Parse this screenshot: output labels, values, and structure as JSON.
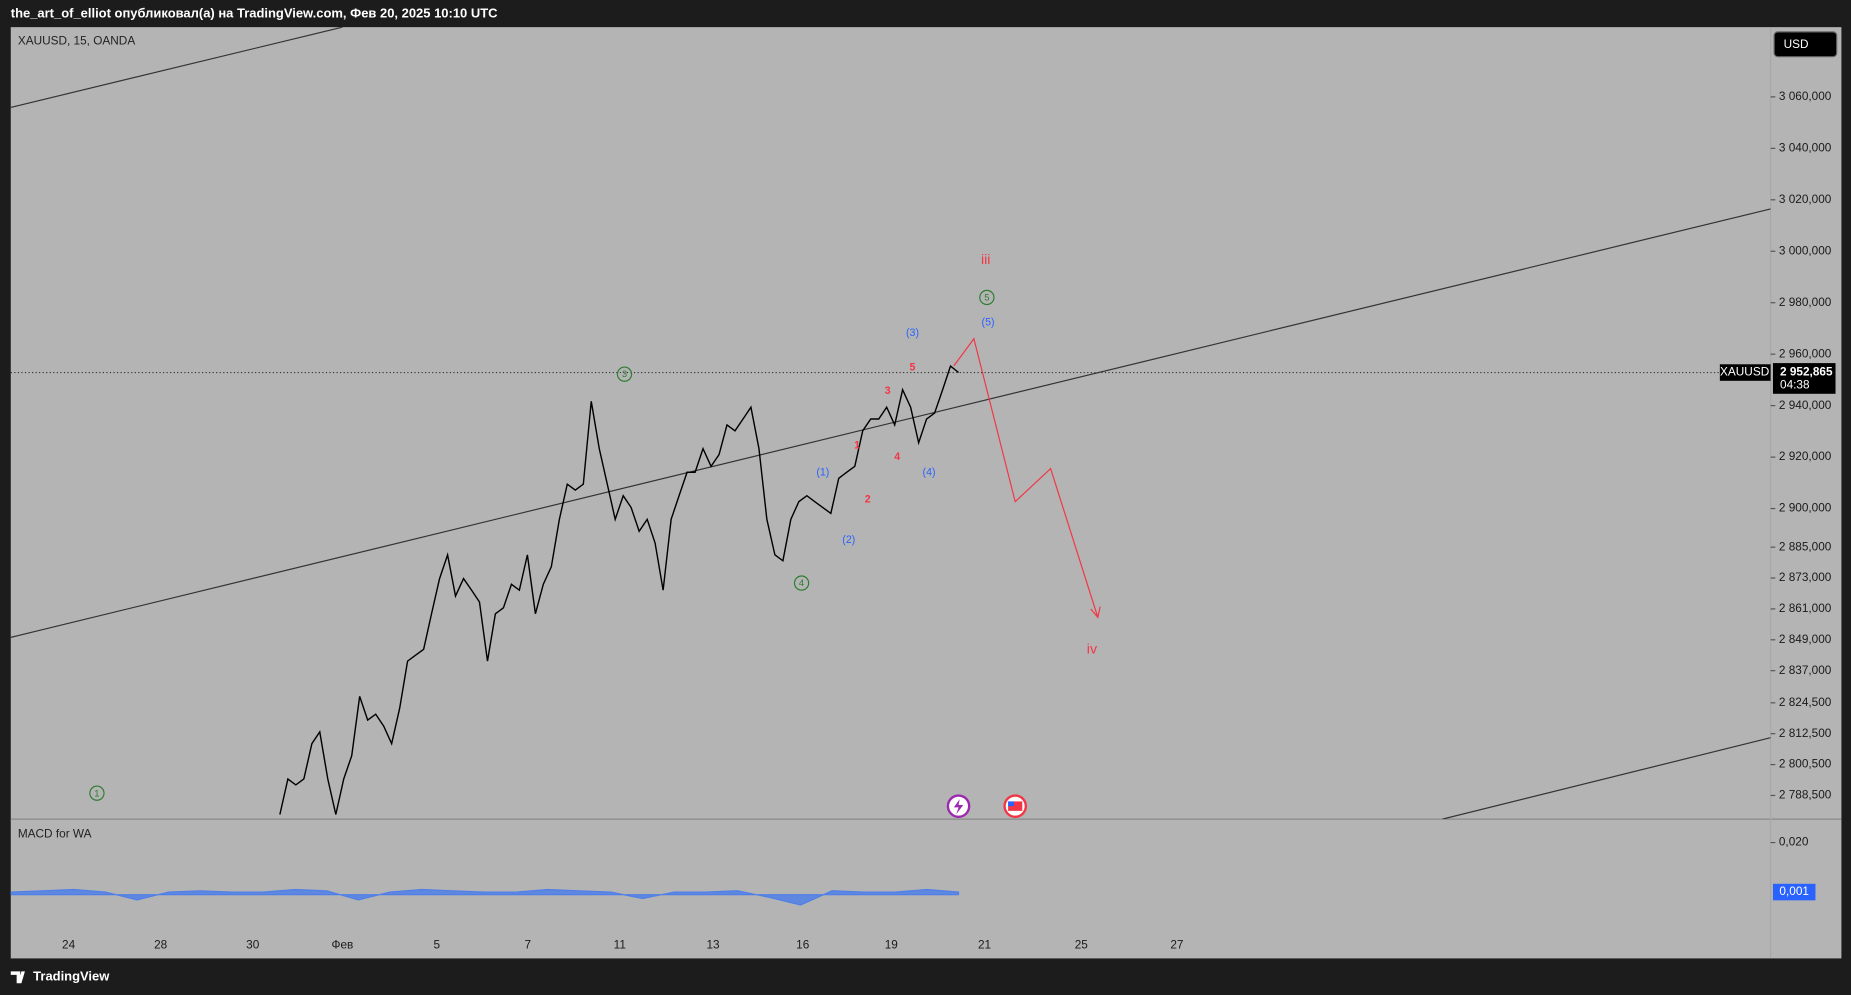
{
  "header": {
    "text": "the_art_of_elliot опубликовал(а) на TradingView.com, Фев 20, 2025 10:10 UTC"
  },
  "footer": {
    "brand": "TradingView"
  },
  "chart_data": [
    {
      "type": "line",
      "title": "XAUUSD, 15, OANDA",
      "currency": "USD",
      "series": [
        {
          "name": "XAUUSD",
          "color": "#000000",
          "values": [
            2781.1,
            2794.9,
            2792.6,
            2794.9,
            2808.6,
            2813.2,
            2794.9,
            2781.1,
            2794.9,
            2804.0,
            2827.0,
            2817.8,
            2820.1,
            2815.5,
            2808.6,
            2822.4,
            2840.7,
            2843.0,
            2845.3,
            2859.1,
            2872.8,
            2882.0,
            2866.0,
            2872.8,
            2868.3,
            2863.7,
            2840.7,
            2859.1,
            2861.4,
            2870.6,
            2868.3,
            2882.0,
            2859.1,
            2870.6,
            2877.4,
            2895.8,
            2909.5,
            2907.2,
            2909.5,
            2941.7,
            2923.3,
            2909.5,
            2895.8,
            2905.0,
            2900.4,
            2891.2,
            2895.8,
            2886.6,
            2868.3,
            2895.8,
            2905.0,
            2914.1,
            2914.1,
            2923.3,
            2916.4,
            2921.0,
            2932.5,
            2930.2,
            2934.8,
            2939.4,
            2923.3,
            2895.8,
            2882.0,
            2879.7,
            2895.8,
            2902.7,
            2905.0,
            2902.7,
            2900.4,
            2898.1,
            2911.8,
            2914.1,
            2916.4,
            2930.2,
            2934.8,
            2934.8,
            2939.4,
            2932.5,
            2946.2,
            2939.4,
            2925.6,
            2934.8,
            2937.1,
            2946.2,
            2955.4,
            2952.9
          ]
        }
      ],
      "last_price": {
        "value": 2952.865,
        "label": "2 952,865"
      },
      "countdown": "04:38",
      "ylim": [
        2779.3,
        3087.1
      ],
      "yticks": [
        {
          "value": 3060,
          "label": "3 060,000"
        },
        {
          "value": 3040,
          "label": "3 040,000"
        },
        {
          "value": 3020,
          "label": "3 020,000"
        },
        {
          "value": 3000,
          "label": "3 000,000"
        },
        {
          "value": 2980,
          "label": "2 980,000"
        },
        {
          "value": 2960,
          "label": "2 960,000"
        },
        {
          "value": 2940,
          "label": "2 940,000"
        },
        {
          "value": 2920,
          "label": "2 920,000"
        },
        {
          "value": 2900,
          "label": "2 900,000"
        },
        {
          "value": 2885,
          "label": "2 885,000"
        },
        {
          "value": 2873,
          "label": "2 873,000"
        },
        {
          "value": 2861,
          "label": "2 861,000"
        },
        {
          "value": 2849,
          "label": "2 849,000"
        },
        {
          "value": 2837,
          "label": "2 837,000"
        },
        {
          "value": 2824.5,
          "label": "2 824,500"
        },
        {
          "value": 2812.5,
          "label": "2 812,500"
        },
        {
          "value": 2800.5,
          "label": "2 800,500"
        },
        {
          "value": 2788.5,
          "label": "2 788,500"
        }
      ],
      "xtick_labels": [
        "24",
        "28",
        "30",
        "Фев",
        "5",
        "7",
        "11",
        "13",
        "16",
        "19",
        "21",
        "25",
        "27"
      ],
      "annotations": [
        {
          "text": "1",
          "color": "#2e7d32",
          "style": "circle"
        },
        {
          "text": "3",
          "color": "#2e7d32",
          "style": "circle"
        },
        {
          "text": "4",
          "color": "#2e7d32",
          "style": "circle"
        },
        {
          "text": "5",
          "color": "#2e7d32",
          "style": "circle"
        },
        {
          "text": "(1)",
          "color": "#2962ff",
          "style": "plain"
        },
        {
          "text": "(2)",
          "color": "#2962ff",
          "style": "plain"
        },
        {
          "text": "(3)",
          "color": "#2962ff",
          "style": "plain"
        },
        {
          "text": "(4)",
          "color": "#2962ff",
          "style": "plain"
        },
        {
          "text": "(5)",
          "color": "#2962ff",
          "style": "plain"
        },
        {
          "text": "1",
          "color": "#f23645",
          "style": "plain"
        },
        {
          "text": "2",
          "color": "#f23645",
          "style": "plain"
        },
        {
          "text": "3",
          "color": "#f23645",
          "style": "plain"
        },
        {
          "text": "4",
          "color": "#f23645",
          "style": "plain"
        },
        {
          "text": "5",
          "color": "#f23645",
          "style": "plain"
        },
        {
          "text": "iii",
          "color": "#f23645",
          "style": "large"
        },
        {
          "text": "iv",
          "color": "#f23645",
          "style": "large"
        }
      ]
    },
    {
      "type": "area",
      "title": "MACD for WA",
      "series": [
        {
          "color": "#4f7fe8",
          "values": [
            0.001,
            0.0015,
            0.002,
            0.001,
            -0.002,
            0.001,
            0.0015,
            0.001,
            0.001,
            0.002,
            0.0015,
            -0.002,
            0.001,
            0.002,
            0.0015,
            0.001,
            0.001,
            0.002,
            0.0015,
            0.001,
            -0.0015,
            0.001,
            0.001,
            0.0015,
            -0.001,
            -0.004,
            0.0015,
            0.001,
            0.001,
            0.002,
            0.001
          ]
        }
      ],
      "ylim": [
        -0.0145,
        0.029
      ],
      "yticks": [
        {
          "value": 0.02,
          "label": "0,020"
        }
      ],
      "last_value": {
        "value": 0.001,
        "label": "0,001"
      }
    }
  ]
}
